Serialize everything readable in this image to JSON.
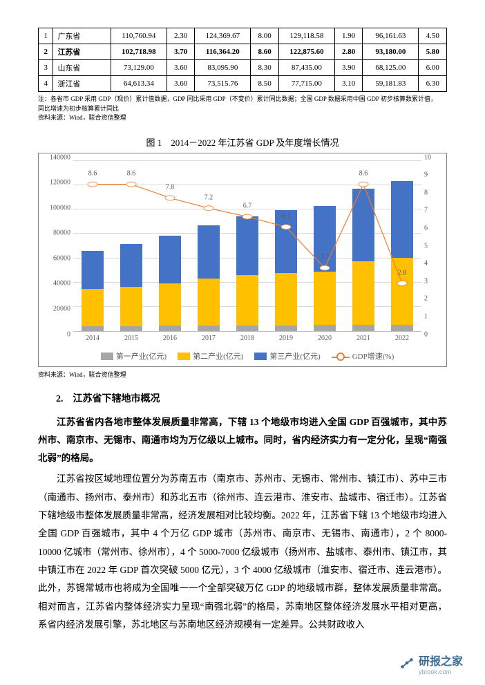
{
  "table": {
    "rows": [
      {
        "n": "1",
        "name": "广东省",
        "c1": "110,760.94",
        "c2": "2.30",
        "c3": "124,369.67",
        "c4": "8.00",
        "c5": "129,118.58",
        "c6": "1.90",
        "c7": "96,161.63",
        "c8": "4.50",
        "bold": false
      },
      {
        "n": "2",
        "name": "江苏省",
        "c1": "102,718.98",
        "c2": "3.70",
        "c3": "116,364.20",
        "c4": "8.60",
        "c5": "122,875.60",
        "c6": "2.80",
        "c7": "93,180.00",
        "c8": "5.80",
        "bold": true
      },
      {
        "n": "3",
        "name": "山东省",
        "c1": "73,129.00",
        "c2": "3.60",
        "c3": "83,095.90",
        "c4": "8.30",
        "c5": "87,435.00",
        "c6": "3.90",
        "c7": "68,125.00",
        "c8": "6.00",
        "bold": false
      },
      {
        "n": "4",
        "name": "浙江省",
        "c1": "64,613.34",
        "c2": "3.60",
        "c3": "73,515.76",
        "c4": "8.50",
        "c5": "77,715.00",
        "c6": "3.10",
        "c7": "59,181.83",
        "c8": "6.30",
        "bold": false
      }
    ],
    "footnote_line1": "注：各省市 GDP 采用 GDP（现价）累计值数据，GDP 同比采用 GDP（不变价）累计同比数据；全国 GDP 数据采用中国 GDP 初步核算数累计值，",
    "footnote_line2": "同比增速为初步核算累计同比",
    "footnote_line3": "资料来源：Wind，联合资信整理"
  },
  "chart": {
    "title": "图 1　2014－2022 年江苏省 GDP 及年度增长情况",
    "source": "资料来源：Wind，联合资信整理",
    "years": [
      "2014",
      "2015",
      "2016",
      "2017",
      "2018",
      "2019",
      "2020",
      "2021",
      "2022"
    ],
    "left_ticks": [
      0,
      20000,
      40000,
      60000,
      80000,
      100000,
      120000,
      140000
    ],
    "right_ticks": [
      0,
      1,
      2,
      3,
      4,
      5,
      6,
      7,
      8,
      9,
      10
    ],
    "left_max": 140000,
    "right_max": 10,
    "series": [
      {
        "name": "第一产业(亿元)",
        "color": "#a6a6a6",
        "values": [
          3700,
          3900,
          4100,
          4300,
          4400,
          4500,
          4700,
          4900,
          5000
        ]
      },
      {
        "name": "第二产业(亿元)",
        "color": "#ffc000",
        "values": [
          30400,
          32200,
          34600,
          38700,
          41200,
          42800,
          43500,
          51800,
          55000
        ]
      },
      {
        "name": "第三产业(亿元)",
        "color": "#4472c4",
        "values": [
          31300,
          35100,
          39500,
          43200,
          48000,
          51900,
          54400,
          60000,
          63000
        ]
      }
    ],
    "line": {
      "name": "GDP增速(%)",
      "color": "#ed7d31",
      "values": [
        8.6,
        8.6,
        7.8,
        7.2,
        6.7,
        6.1,
        3.7,
        8.6,
        2.8
      ],
      "show_labels": [
        true,
        true,
        true,
        true,
        true,
        true,
        true,
        true,
        true
      ]
    },
    "legend": [
      "第一产业(亿元)",
      "第二产业(亿元)",
      "第三产业(亿元)",
      "GDP增速(%)"
    ]
  },
  "text": {
    "h3": "2.　江苏省下辖地市概况",
    "p1": "江苏省省内各地市整体发展质量非常高，下辖 13 个地级市均进入全国 GDP 百强城市，其中苏州市、南京市、无锡市、南通市均为万亿级以上城市。同时，省内经济实力有一定分化，呈现“南强北弱”的格局。",
    "p2": "江苏省按区域地理位置分为苏南五市（南京市、苏州市、无锡市、常州市、镇江市）、苏中三市（南通市、扬州市、泰州市）和苏北五市（徐州市、连云港市、淮安市、盐城市、宿迁市）。江苏省下辖地级市整体发展质量非常高，经济发展相对比较均衡。2022 年，江苏省下辖 13 个地级市均进入全国 GDP 百强城市，其中 4 个万亿 GDP 城市（苏州市、南京市、无锡市、南通市），2 个 8000-10000 亿城市（常州市、徐州市），4 个 5000-7000 亿级城市（扬州市、盐城市、泰州市、镇江市，其中镇江市在 2022 年 GDP 首次突破 5000 亿元），3 个 4000 亿级城市（淮安市、宿迁市、连云港市）。此外，苏锡常城市也将成为全国唯一一个全部突破万亿 GDP 的地级城市群，整体发展质量非常高。相对而言，江苏省内整体经济实力呈现“南强北弱”的格局，苏南地区整体经济发展水平相对更高，系省内经济发展引擎，苏北地区与苏南地区经济规模有一定差异。公共财政收入"
  },
  "watermark": {
    "cn": "研报之家",
    "en": "yblook.com"
  }
}
